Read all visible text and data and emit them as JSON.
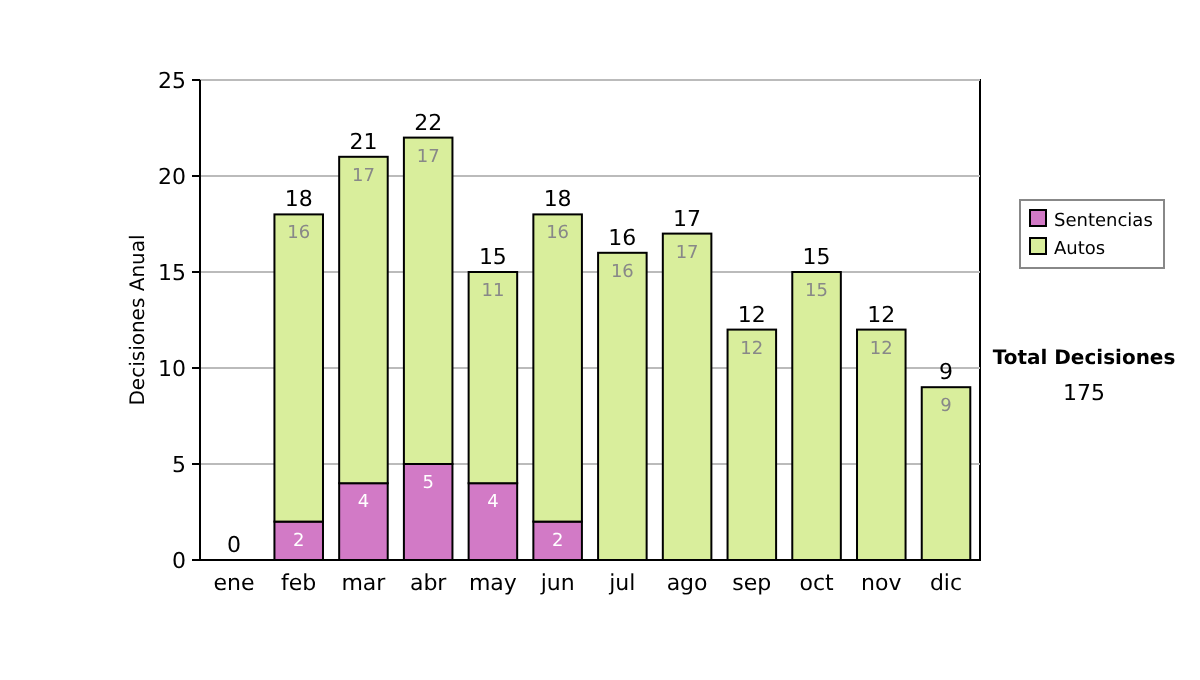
{
  "chart_data": {
    "type": "bar",
    "stacked": true,
    "ylabel": "Decisiones Anual",
    "categories": [
      "ene",
      "feb",
      "mar",
      "abr",
      "may",
      "jun",
      "jul",
      "ago",
      "sep",
      "oct",
      "nov",
      "dic"
    ],
    "series": [
      {
        "name": "Sentencias",
        "color": "#d27ac6",
        "values": [
          0,
          2,
          4,
          5,
          4,
          2,
          0,
          0,
          0,
          0,
          0,
          0
        ],
        "value_labels": [
          null,
          "2",
          "4",
          "5",
          "4",
          "2",
          null,
          null,
          null,
          null,
          null,
          null
        ]
      },
      {
        "name": "Autos",
        "color": "#d9ee9c",
        "values": [
          0,
          16,
          17,
          17,
          11,
          16,
          16,
          17,
          12,
          15,
          12,
          9
        ],
        "value_labels": [
          null,
          "16",
          "17",
          "17",
          "11",
          "16",
          "16",
          "17",
          "12",
          "15",
          "12",
          "9"
        ]
      }
    ],
    "totals": [
      "0",
      "18",
      "21",
      "22",
      "15",
      "18",
      "16",
      "17",
      "12",
      "15",
      "12",
      "9"
    ],
    "ylim": [
      0,
      25
    ],
    "yticks": [
      0,
      5,
      10,
      15,
      20,
      25
    ],
    "grid": "y",
    "legend": "right",
    "annotations": [
      "Total Decisiones",
      "175"
    ]
  }
}
